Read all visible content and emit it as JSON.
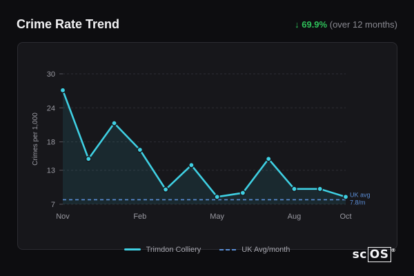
{
  "header": {
    "title": "Crime Rate Trend",
    "change_arrow": "↓",
    "change_pct": "69.9%",
    "change_note": "(over 12 months)"
  },
  "legend": {
    "series_label": "Trimdon Colliery",
    "avg_label": "UK Avg/month"
  },
  "logo": {
    "text_a": "sc",
    "text_b": "OS",
    "mark": "®"
  },
  "colors": {
    "line": "#3fd0e3",
    "avg": "#5b8ed6",
    "positive": "#2ec25a"
  },
  "chart_data": {
    "type": "line",
    "ylabel": "Crimes per 1,000",
    "xlabel": "",
    "yticks": [
      7,
      13,
      18,
      24,
      30
    ],
    "ylim": [
      7,
      30
    ],
    "xtick_labels": [
      {
        "index": 0,
        "label": "Nov"
      },
      {
        "index": 3,
        "label": "Feb"
      },
      {
        "index": 6,
        "label": "May"
      },
      {
        "index": 9,
        "label": "Aug"
      },
      {
        "index": 11,
        "label": "Oct"
      }
    ],
    "series": [
      {
        "name": "Trimdon Colliery",
        "values": [
          27.1,
          15.0,
          21.3,
          16.6,
          9.6,
          13.9,
          8.3,
          9.0,
          15.0,
          9.7,
          9.7,
          8.3
        ]
      }
    ],
    "reference": {
      "name": "UK Avg/month",
      "value": 7.8,
      "label_line1": "UK avg",
      "label_line2": "7.8/m"
    },
    "grid": true
  }
}
